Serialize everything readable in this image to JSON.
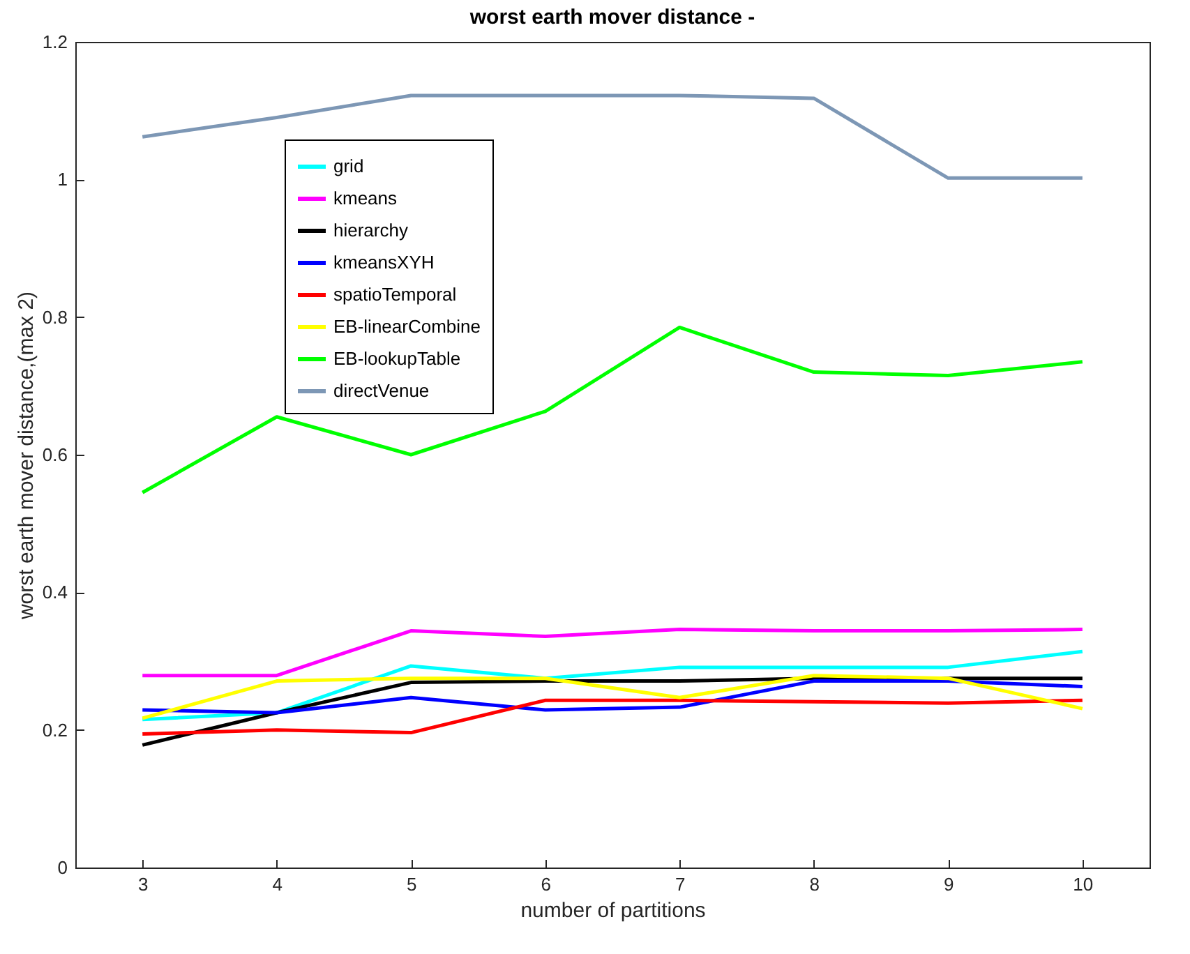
{
  "chart_data": {
    "type": "line",
    "title": "worst earth mover distance -",
    "xlabel": "number of partitions",
    "ylabel": "worst earth mover distance,(max 2)",
    "x": [
      3,
      4,
      5,
      6,
      7,
      8,
      9,
      10
    ],
    "series": [
      {
        "name": "grid",
        "color": "#00ffff",
        "values": [
          0.215,
          0.225,
          0.293,
          0.275,
          0.291,
          0.291,
          0.291,
          0.314
        ]
      },
      {
        "name": "kmeans",
        "color": "#ff00ff",
        "values": [
          0.279,
          0.279,
          0.344,
          0.336,
          0.346,
          0.344,
          0.344,
          0.346
        ]
      },
      {
        "name": "hierarchy",
        "color": "#000000",
        "values": [
          0.178,
          0.225,
          0.269,
          0.271,
          0.271,
          0.275,
          0.275,
          0.275
        ]
      },
      {
        "name": "kmeansXYH",
        "color": "#0000ff",
        "values": [
          0.229,
          0.225,
          0.247,
          0.229,
          0.233,
          0.271,
          0.271,
          0.263
        ]
      },
      {
        "name": "spatioTemporal",
        "color": "#ff0000",
        "values": [
          0.194,
          0.2,
          0.196,
          0.243,
          0.243,
          0.241,
          0.239,
          0.243
        ]
      },
      {
        "name": "EB-linearCombine",
        "color": "#ffff00",
        "values": [
          0.217,
          0.271,
          0.275,
          0.275,
          0.247,
          0.279,
          0.275,
          0.231
        ]
      },
      {
        "name": "EB-lookupTable",
        "color": "#00ff00",
        "values": [
          0.545,
          0.655,
          0.6,
          0.663,
          0.785,
          0.72,
          0.715,
          0.735
        ]
      },
      {
        "name": "directVenue",
        "color": "#7d97b5",
        "values": [
          1.062,
          1.09,
          1.122,
          1.122,
          1.122,
          1.118,
          1.002,
          1.002
        ]
      }
    ],
    "xlim": [
      2.5,
      10.5
    ],
    "xticks": [
      3,
      4,
      5,
      6,
      7,
      8,
      9,
      10
    ],
    "ylim": [
      0,
      1.2
    ],
    "yticks": [
      0,
      0.2,
      0.4,
      0.6,
      0.8,
      1,
      1.2
    ],
    "grid": false,
    "legend": "top left",
    "marker": "none",
    "line_style": "solid"
  }
}
